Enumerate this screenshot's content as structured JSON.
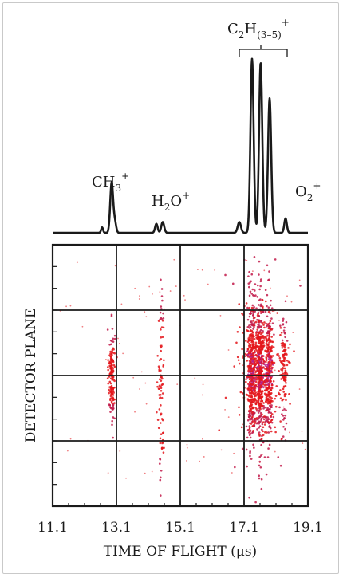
{
  "chart_data": [
    {
      "type": "line",
      "name": "time-of-flight-spectrum",
      "x_range": [
        11.1,
        19.1
      ],
      "peaks": [
        {
          "x": 12.65,
          "height": 0.03,
          "width": 0.03
        },
        {
          "x": 12.95,
          "height": 0.28,
          "width": 0.045
        },
        {
          "x": 13.05,
          "height": 0.06,
          "width": 0.04
        },
        {
          "x": 14.35,
          "height": 0.05,
          "width": 0.04
        },
        {
          "x": 14.55,
          "height": 0.06,
          "width": 0.045
        },
        {
          "x": 16.95,
          "height": 0.06,
          "width": 0.05
        },
        {
          "x": 17.35,
          "height": 0.97,
          "width": 0.05
        },
        {
          "x": 17.62,
          "height": 0.95,
          "width": 0.05
        },
        {
          "x": 17.9,
          "height": 0.75,
          "width": 0.05
        },
        {
          "x": 18.4,
          "height": 0.08,
          "width": 0.04
        }
      ],
      "annotations": {
        "ch3": {
          "base": "CH",
          "sub": "3",
          "sup": "+"
        },
        "h2o": {
          "base": "H",
          "sub": "2",
          "base2": "O",
          "sup": "+"
        },
        "c2h": {
          "base": "C",
          "sub": "2",
          "base2": "H",
          "sub2": "(3–5)",
          "sup": "+"
        },
        "o2": {
          "base": "O",
          "sub": "2",
          "sup": "+"
        }
      },
      "bracket_range": [
        16.95,
        18.45
      ]
    },
    {
      "type": "scatter",
      "name": "detector-image",
      "xlabel": "TIME OF FLIGHT (μs)",
      "ylabel": "DETECTOR PLANE",
      "xlim": [
        11.1,
        19.1
      ],
      "ylim": [
        0,
        1
      ],
      "x_ticks": [
        "11.1",
        "13.1",
        "15.1",
        "17.1",
        "19.1"
      ],
      "x_tick_values": [
        11.1,
        13.1,
        15.1,
        17.1,
        19.1
      ],
      "grid": true,
      "colors": {
        "dots": "#e4161b",
        "dense": "#c21a4a",
        "core": "#b5208a",
        "line": "#1a1a1a"
      },
      "clusters": [
        {
          "x": 12.95,
          "y": 0.5,
          "sx": 0.05,
          "sy": 0.09,
          "n": 160
        },
        {
          "x": 14.5,
          "y": 0.45,
          "sx": 0.05,
          "sy": 0.22,
          "n": 90
        },
        {
          "x": 17.35,
          "y": 0.52,
          "sx": 0.07,
          "sy": 0.13,
          "n": 420
        },
        {
          "x": 17.6,
          "y": 0.52,
          "sx": 0.06,
          "sy": 0.12,
          "n": 380
        },
        {
          "x": 17.88,
          "y": 0.52,
          "sx": 0.06,
          "sy": 0.11,
          "n": 300
        },
        {
          "x": 18.35,
          "y": 0.51,
          "sx": 0.06,
          "sy": 0.1,
          "n": 120
        },
        {
          "x": 17.6,
          "y": 0.52,
          "sx": 0.4,
          "sy": 0.23,
          "n": 260
        }
      ]
    }
  ]
}
